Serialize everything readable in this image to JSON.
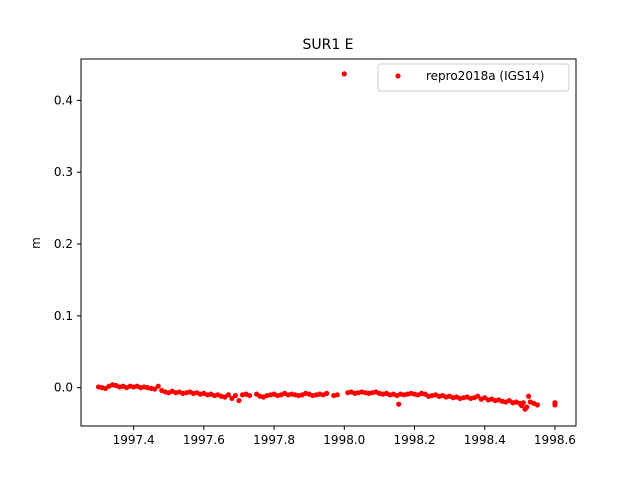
{
  "chart_data": {
    "type": "scatter",
    "title": "SUR1 E",
    "xlabel": "",
    "ylabel": "m",
    "xlim": [
      1997.25,
      1998.66
    ],
    "ylim": [
      -0.0534,
      0.4577
    ],
    "xticks": [
      1997.4,
      1997.6,
      1997.8,
      1998.0,
      1998.2,
      1998.4,
      1998.6
    ],
    "xtick_labels": [
      "1997.4",
      "1997.6",
      "1997.8",
      "1998.0",
      "1998.2",
      "1998.4",
      "1998.6"
    ],
    "yticks": [
      0.0,
      0.1,
      0.2,
      0.3,
      0.4
    ],
    "ytick_labels": [
      "0.0",
      "0.1",
      "0.2",
      "0.3",
      "0.4"
    ],
    "grid": false,
    "legend": {
      "position": "top-right",
      "entries": [
        "repro2018a (IGS14)"
      ]
    },
    "series": [
      {
        "name": "repro2018a (IGS14)",
        "color": "#ff0000",
        "marker": "circle",
        "points": [
          [
            1997.3,
            0.001
          ],
          [
            1997.31,
            0.0
          ],
          [
            1997.32,
            -0.001
          ],
          [
            1997.33,
            0.002
          ],
          [
            1997.34,
            0.004
          ],
          [
            1997.35,
            0.003
          ],
          [
            1997.36,
            0.001
          ],
          [
            1997.37,
            0.002
          ],
          [
            1997.38,
            0.0
          ],
          [
            1997.39,
            0.002
          ],
          [
            1997.4,
            0.001
          ],
          [
            1997.41,
            0.002
          ],
          [
            1997.42,
            0.0
          ],
          [
            1997.43,
            0.001
          ],
          [
            1997.44,
            0.0
          ],
          [
            1997.45,
            -0.001
          ],
          [
            1997.46,
            -0.002
          ],
          [
            1997.47,
            0.002
          ],
          [
            1997.48,
            -0.004
          ],
          [
            1997.49,
            -0.006
          ],
          [
            1997.5,
            -0.007
          ],
          [
            1997.51,
            -0.005
          ],
          [
            1997.52,
            -0.007
          ],
          [
            1997.53,
            -0.006
          ],
          [
            1997.54,
            -0.008
          ],
          [
            1997.55,
            -0.007
          ],
          [
            1997.56,
            -0.006
          ],
          [
            1997.57,
            -0.008
          ],
          [
            1997.58,
            -0.007
          ],
          [
            1997.59,
            -0.009
          ],
          [
            1997.6,
            -0.008
          ],
          [
            1997.61,
            -0.01
          ],
          [
            1997.62,
            -0.009
          ],
          [
            1997.63,
            -0.011
          ],
          [
            1997.64,
            -0.01
          ],
          [
            1997.65,
            -0.012
          ],
          [
            1997.66,
            -0.013
          ],
          [
            1997.67,
            -0.01
          ],
          [
            1997.68,
            -0.015
          ],
          [
            1997.69,
            -0.011
          ],
          [
            1997.7,
            -0.018
          ],
          [
            1997.71,
            -0.01
          ],
          [
            1997.72,
            -0.009
          ],
          [
            1997.73,
            -0.011
          ],
          [
            1997.75,
            -0.009
          ],
          [
            1997.76,
            -0.012
          ],
          [
            1997.77,
            -0.013
          ],
          [
            1997.78,
            -0.011
          ],
          [
            1997.79,
            -0.01
          ],
          [
            1997.8,
            -0.009
          ],
          [
            1997.81,
            -0.011
          ],
          [
            1997.82,
            -0.01
          ],
          [
            1997.83,
            -0.008
          ],
          [
            1997.84,
            -0.01
          ],
          [
            1997.85,
            -0.009
          ],
          [
            1997.86,
            -0.01
          ],
          [
            1997.87,
            -0.011
          ],
          [
            1997.88,
            -0.01
          ],
          [
            1997.89,
            -0.008
          ],
          [
            1997.9,
            -0.009
          ],
          [
            1997.91,
            -0.011
          ],
          [
            1997.92,
            -0.01
          ],
          [
            1997.93,
            -0.009
          ],
          [
            1997.94,
            -0.01
          ],
          [
            1997.95,
            -0.008
          ],
          [
            1997.97,
            -0.011
          ],
          [
            1997.98,
            -0.01
          ],
          [
            1998.0,
            0.437
          ],
          [
            1998.01,
            -0.007
          ],
          [
            1998.02,
            -0.006
          ],
          [
            1998.03,
            -0.008
          ],
          [
            1998.04,
            -0.007
          ],
          [
            1998.05,
            -0.006
          ],
          [
            1998.06,
            -0.007
          ],
          [
            1998.07,
            -0.008
          ],
          [
            1998.08,
            -0.007
          ],
          [
            1998.09,
            -0.006
          ],
          [
            1998.1,
            -0.008
          ],
          [
            1998.11,
            -0.009
          ],
          [
            1998.12,
            -0.008
          ],
          [
            1998.13,
            -0.01
          ],
          [
            1998.14,
            -0.009
          ],
          [
            1998.15,
            -0.011
          ],
          [
            1998.155,
            -0.023
          ],
          [
            1998.16,
            -0.009
          ],
          [
            1998.17,
            -0.01
          ],
          [
            1998.18,
            -0.009
          ],
          [
            1998.19,
            -0.008
          ],
          [
            1998.2,
            -0.009
          ],
          [
            1998.21,
            -0.01
          ],
          [
            1998.22,
            -0.008
          ],
          [
            1998.23,
            -0.009
          ],
          [
            1998.24,
            -0.012
          ],
          [
            1998.25,
            -0.011
          ],
          [
            1998.26,
            -0.01
          ],
          [
            1998.27,
            -0.012
          ],
          [
            1998.28,
            -0.011
          ],
          [
            1998.29,
            -0.013
          ],
          [
            1998.3,
            -0.012
          ],
          [
            1998.31,
            -0.014
          ],
          [
            1998.32,
            -0.013
          ],
          [
            1998.33,
            -0.015
          ],
          [
            1998.34,
            -0.014
          ],
          [
            1998.35,
            -0.013
          ],
          [
            1998.36,
            -0.015
          ],
          [
            1998.37,
            -0.014
          ],
          [
            1998.38,
            -0.012
          ],
          [
            1998.39,
            -0.016
          ],
          [
            1998.4,
            -0.014
          ],
          [
            1998.41,
            -0.017
          ],
          [
            1998.42,
            -0.016
          ],
          [
            1998.43,
            -0.018
          ],
          [
            1998.44,
            -0.017
          ],
          [
            1998.45,
            -0.019
          ],
          [
            1998.46,
            -0.02
          ],
          [
            1998.47,
            -0.018
          ],
          [
            1998.48,
            -0.021
          ],
          [
            1998.49,
            -0.02
          ],
          [
            1998.5,
            -0.022
          ],
          [
            1998.505,
            -0.025
          ],
          [
            1998.51,
            -0.021
          ],
          [
            1998.515,
            -0.03
          ],
          [
            1998.52,
            -0.027
          ],
          [
            1998.525,
            -0.012
          ],
          [
            1998.53,
            -0.02
          ],
          [
            1998.54,
            -0.022
          ],
          [
            1998.55,
            -0.024
          ],
          [
            1998.6,
            -0.021
          ],
          [
            1998.6,
            -0.024
          ]
        ]
      }
    ]
  }
}
